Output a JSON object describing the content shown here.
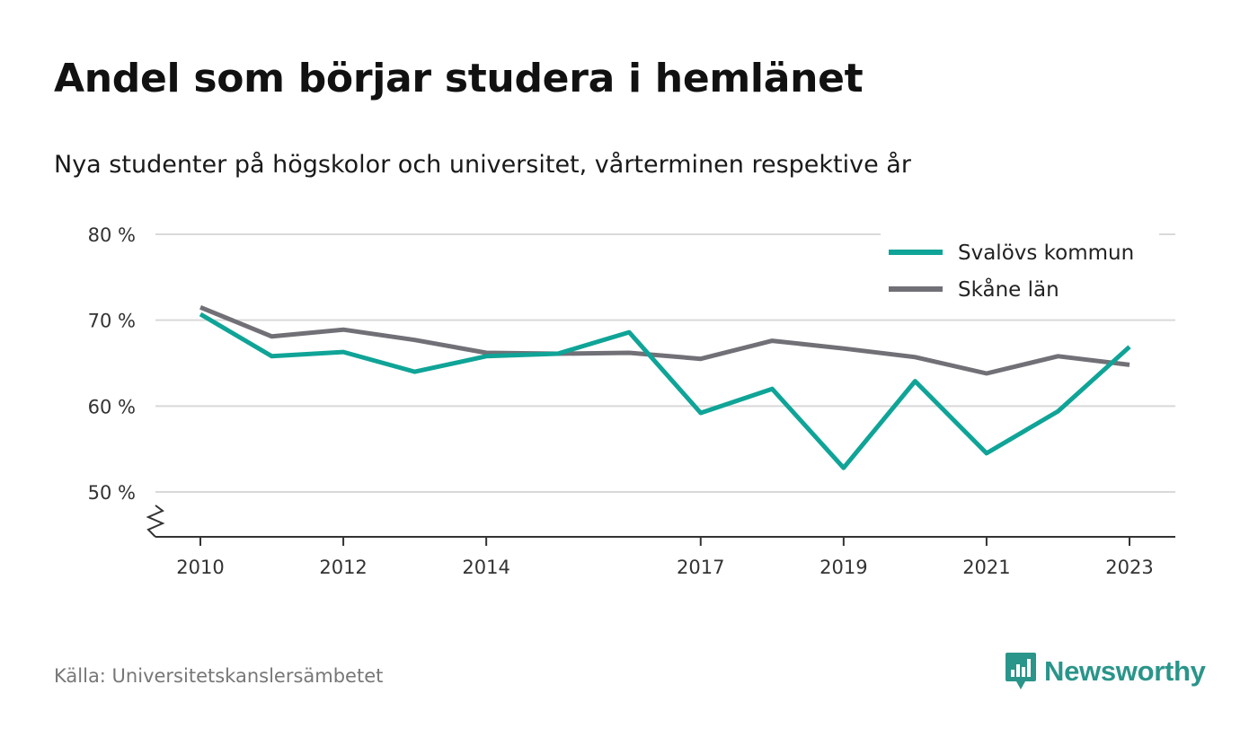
{
  "header": {
    "title": "Andel som börjar studera i hemlänet",
    "subtitle": "Nya studenter på högskolor och universitet, vårterminen respektive år"
  },
  "footer": {
    "source": "Källa: Universitetskanslersämbetet",
    "brand": "Newsworthy",
    "brand_icon": "newsworthy-logo-icon",
    "brand_color": "#2a958a"
  },
  "chart_data": {
    "type": "line",
    "x": [
      2010,
      2011,
      2012,
      2013,
      2014,
      2015,
      2016,
      2017,
      2018,
      2019,
      2020,
      2021,
      2022,
      2023
    ],
    "x_tick_values": [
      2010,
      2012,
      2014,
      2017,
      2019,
      2021,
      2023
    ],
    "x_tick_labels": [
      "2010",
      "2012",
      "2014",
      "2017",
      "2019",
      "2021",
      "2023"
    ],
    "y_tick_values": [
      50,
      60,
      70,
      80
    ],
    "y_tick_labels": [
      "50 %",
      "60 %",
      "70 %",
      "80 %"
    ],
    "ylim": [
      45,
      80
    ],
    "y_axis_break": true,
    "grid": true,
    "legend_position": "top-right",
    "series": [
      {
        "name": "Svalövs kommun",
        "color": "#0fa497",
        "values": [
          70.7,
          65.8,
          66.3,
          64.0,
          65.8,
          66.1,
          68.6,
          59.2,
          62.0,
          52.8,
          62.9,
          54.5,
          59.4,
          66.9
        ]
      },
      {
        "name": "Skåne län",
        "color": "#727077",
        "values": [
          71.5,
          68.1,
          68.9,
          67.7,
          66.2,
          66.1,
          66.2,
          65.5,
          67.6,
          66.7,
          65.7,
          63.8,
          65.8,
          64.8
        ]
      }
    ]
  }
}
